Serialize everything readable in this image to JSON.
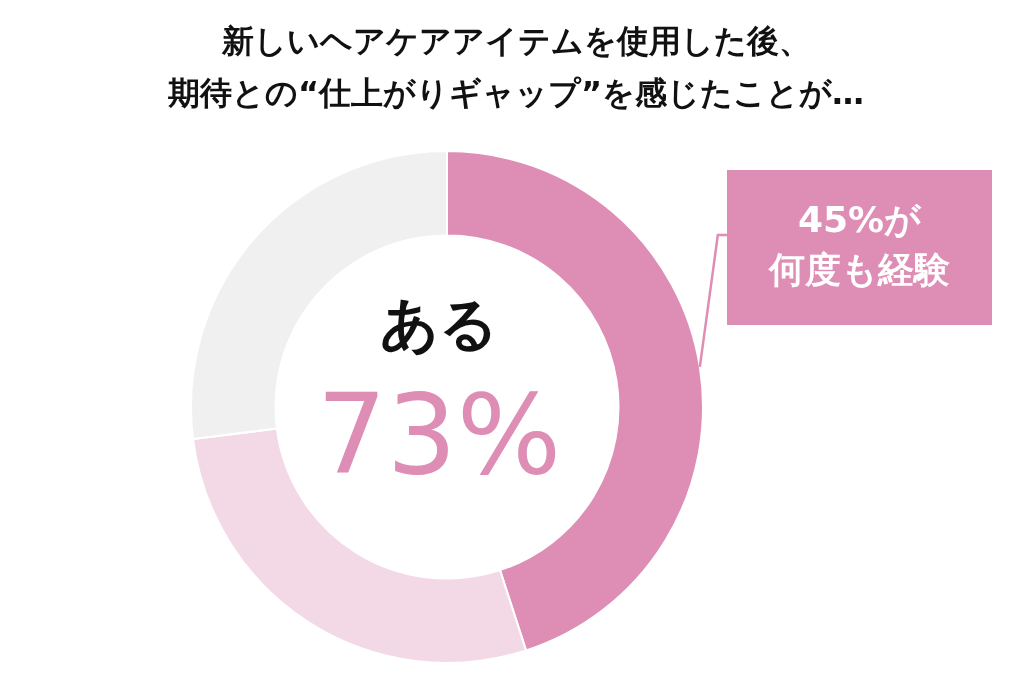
{
  "chart_data": {
    "type": "donut",
    "title": "新しいヘアケアアイテムを使用した後、",
    "subtitle": "期待との“仕上がりギャップ”を感じたことが…",
    "categories": [
      null,
      null,
      null
    ],
    "values": [
      45,
      28,
      27
    ],
    "colors": [
      "#de8db5",
      "#f3d9e6",
      "#f0f0f0"
    ],
    "value_labels": [
      "45%が",
      null,
      null
    ],
    "annotations": [
      "ある",
      "73%",
      "何度も経験"
    ],
    "legend": false
  }
}
